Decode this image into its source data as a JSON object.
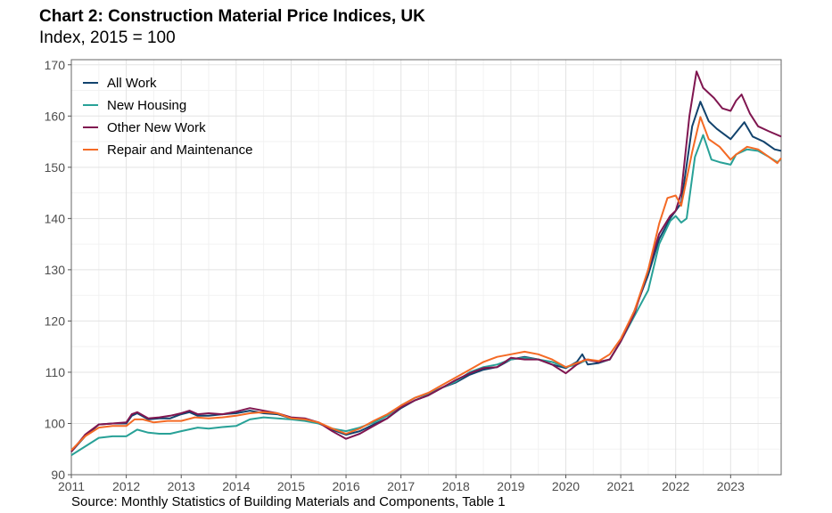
{
  "title": "Chart 2: Construction Material Price Indices, UK",
  "subtitle": "Index, 2015 = 100",
  "source": "Source: Monthly Statistics of Building Materials and Components, Table 1",
  "chart_data": {
    "type": "line",
    "xlabel": "",
    "ylabel": "",
    "xlim": [
      2011,
      2023.92
    ],
    "ylim": [
      90,
      171
    ],
    "x_ticks": [
      "2011",
      "2012",
      "2013",
      "2014",
      "2015",
      "2016",
      "2017",
      "2018",
      "2019",
      "2020",
      "2021",
      "2022",
      "2023"
    ],
    "y_ticks": [
      "90",
      "100",
      "110",
      "120",
      "130",
      "140",
      "150",
      "160",
      "170"
    ],
    "grid": true,
    "legend_position": "top-left",
    "series": [
      {
        "name": "All Work",
        "color": "#12436d",
        "points": [
          [
            2011.0,
            94.5
          ],
          [
            2011.25,
            97.5
          ],
          [
            2011.5,
            99.8
          ],
          [
            2011.75,
            100.0
          ],
          [
            2012.0,
            100.0
          ],
          [
            2012.1,
            101.5
          ],
          [
            2012.2,
            102.0
          ],
          [
            2012.4,
            100.8
          ],
          [
            2012.6,
            101.0
          ],
          [
            2012.8,
            101.0
          ],
          [
            2013.0,
            101.8
          ],
          [
            2013.15,
            102.2
          ],
          [
            2013.3,
            101.5
          ],
          [
            2013.5,
            101.5
          ],
          [
            2013.75,
            101.8
          ],
          [
            2014.0,
            102.0
          ],
          [
            2014.25,
            102.5
          ],
          [
            2014.5,
            102.0
          ],
          [
            2014.75,
            101.8
          ],
          [
            2015.0,
            101.0
          ],
          [
            2015.25,
            100.8
          ],
          [
            2015.5,
            100.2
          ],
          [
            2015.75,
            98.8
          ],
          [
            2016.0,
            97.8
          ],
          [
            2016.25,
            98.5
          ],
          [
            2016.5,
            99.8
          ],
          [
            2016.75,
            101.0
          ],
          [
            2017.0,
            103.0
          ],
          [
            2017.25,
            104.5
          ],
          [
            2017.5,
            105.5
          ],
          [
            2017.75,
            107.0
          ],
          [
            2018.0,
            108.0
          ],
          [
            2018.25,
            109.5
          ],
          [
            2018.5,
            110.5
          ],
          [
            2018.75,
            111.0
          ],
          [
            2019.0,
            112.5
          ],
          [
            2019.25,
            113.0
          ],
          [
            2019.5,
            112.5
          ],
          [
            2019.75,
            111.5
          ],
          [
            2020.0,
            110.8
          ],
          [
            2020.2,
            112.0
          ],
          [
            2020.3,
            113.5
          ],
          [
            2020.4,
            111.5
          ],
          [
            2020.6,
            111.8
          ],
          [
            2020.8,
            112.5
          ],
          [
            2021.0,
            116.0
          ],
          [
            2021.25,
            122.0
          ],
          [
            2021.5,
            129.0
          ],
          [
            2021.7,
            136.0
          ],
          [
            2021.9,
            140.0
          ],
          [
            2022.0,
            141.5
          ],
          [
            2022.1,
            143.0
          ],
          [
            2022.3,
            158.0
          ],
          [
            2022.45,
            162.8
          ],
          [
            2022.6,
            159.0
          ],
          [
            2022.75,
            157.5
          ],
          [
            2023.0,
            155.5
          ],
          [
            2023.25,
            158.8
          ],
          [
            2023.4,
            156.0
          ],
          [
            2023.6,
            155.0
          ],
          [
            2023.8,
            153.5
          ],
          [
            2023.92,
            153.2
          ]
        ]
      },
      {
        "name": "New Housing",
        "color": "#28a197",
        "points": [
          [
            2011.0,
            93.8
          ],
          [
            2011.25,
            95.5
          ],
          [
            2011.5,
            97.2
          ],
          [
            2011.75,
            97.5
          ],
          [
            2012.0,
            97.5
          ],
          [
            2012.2,
            98.8
          ],
          [
            2012.4,
            98.2
          ],
          [
            2012.6,
            98.0
          ],
          [
            2012.8,
            98.0
          ],
          [
            2013.0,
            98.5
          ],
          [
            2013.3,
            99.2
          ],
          [
            2013.5,
            99.0
          ],
          [
            2013.75,
            99.3
          ],
          [
            2014.0,
            99.5
          ],
          [
            2014.25,
            100.8
          ],
          [
            2014.5,
            101.2
          ],
          [
            2014.75,
            101.0
          ],
          [
            2015.0,
            100.8
          ],
          [
            2015.25,
            100.5
          ],
          [
            2015.5,
            100.0
          ],
          [
            2015.75,
            99.0
          ],
          [
            2016.0,
            98.5
          ],
          [
            2016.25,
            99.2
          ],
          [
            2016.5,
            100.2
          ],
          [
            2016.75,
            101.5
          ],
          [
            2017.0,
            103.5
          ],
          [
            2017.25,
            105.0
          ],
          [
            2017.5,
            105.8
          ],
          [
            2017.75,
            107.0
          ],
          [
            2018.0,
            108.2
          ],
          [
            2018.25,
            110.0
          ],
          [
            2018.5,
            111.0
          ],
          [
            2018.75,
            111.5
          ],
          [
            2019.0,
            112.5
          ],
          [
            2019.25,
            112.8
          ],
          [
            2019.5,
            112.5
          ],
          [
            2019.75,
            112.0
          ],
          [
            2020.0,
            111.0
          ],
          [
            2020.2,
            111.5
          ],
          [
            2020.4,
            112.5
          ],
          [
            2020.6,
            112.0
          ],
          [
            2020.8,
            112.5
          ],
          [
            2021.0,
            116.0
          ],
          [
            2021.25,
            121.0
          ],
          [
            2021.5,
            126.0
          ],
          [
            2021.7,
            135.0
          ],
          [
            2021.9,
            139.5
          ],
          [
            2022.0,
            140.5
          ],
          [
            2022.1,
            139.2
          ],
          [
            2022.2,
            140.0
          ],
          [
            2022.35,
            152.0
          ],
          [
            2022.5,
            156.3
          ],
          [
            2022.65,
            151.5
          ],
          [
            2022.8,
            151.0
          ],
          [
            2023.0,
            150.5
          ],
          [
            2023.1,
            152.5
          ],
          [
            2023.3,
            153.5
          ],
          [
            2023.5,
            153.2
          ],
          [
            2023.7,
            152.0
          ],
          [
            2023.85,
            151.0
          ],
          [
            2023.92,
            151.6
          ]
        ]
      },
      {
        "name": "Other New Work",
        "color": "#801650",
        "points": [
          [
            2011.0,
            94.5
          ],
          [
            2011.25,
            97.8
          ],
          [
            2011.5,
            99.8
          ],
          [
            2011.75,
            100.0
          ],
          [
            2012.0,
            100.2
          ],
          [
            2012.1,
            101.8
          ],
          [
            2012.2,
            102.2
          ],
          [
            2012.4,
            101.0
          ],
          [
            2012.6,
            101.2
          ],
          [
            2012.8,
            101.5
          ],
          [
            2013.0,
            102.0
          ],
          [
            2013.15,
            102.5
          ],
          [
            2013.3,
            101.8
          ],
          [
            2013.5,
            102.0
          ],
          [
            2013.75,
            101.8
          ],
          [
            2014.0,
            102.3
          ],
          [
            2014.25,
            103.0
          ],
          [
            2014.5,
            102.5
          ],
          [
            2014.75,
            102.0
          ],
          [
            2015.0,
            101.2
          ],
          [
            2015.25,
            101.0
          ],
          [
            2015.5,
            100.2
          ],
          [
            2015.75,
            98.5
          ],
          [
            2016.0,
            97.0
          ],
          [
            2016.25,
            98.0
          ],
          [
            2016.5,
            99.5
          ],
          [
            2016.75,
            101.0
          ],
          [
            2017.0,
            103.2
          ],
          [
            2017.25,
            104.5
          ],
          [
            2017.5,
            105.5
          ],
          [
            2017.75,
            107.0
          ],
          [
            2018.0,
            108.5
          ],
          [
            2018.25,
            109.8
          ],
          [
            2018.5,
            110.8
          ],
          [
            2018.75,
            111.0
          ],
          [
            2019.0,
            112.8
          ],
          [
            2019.25,
            112.5
          ],
          [
            2019.5,
            112.5
          ],
          [
            2019.75,
            111.5
          ],
          [
            2020.0,
            109.8
          ],
          [
            2020.2,
            111.5
          ],
          [
            2020.35,
            112.5
          ],
          [
            2020.6,
            112.0
          ],
          [
            2020.8,
            112.5
          ],
          [
            2021.0,
            116.0
          ],
          [
            2021.25,
            121.5
          ],
          [
            2021.5,
            130.0
          ],
          [
            2021.7,
            137.0
          ],
          [
            2021.9,
            140.5
          ],
          [
            2022.0,
            141.5
          ],
          [
            2022.1,
            145.0
          ],
          [
            2022.25,
            160.0
          ],
          [
            2022.38,
            168.7
          ],
          [
            2022.5,
            165.5
          ],
          [
            2022.7,
            163.5
          ],
          [
            2022.85,
            161.5
          ],
          [
            2023.0,
            161.0
          ],
          [
            2023.1,
            163.0
          ],
          [
            2023.2,
            164.2
          ],
          [
            2023.35,
            160.5
          ],
          [
            2023.5,
            158.0
          ],
          [
            2023.7,
            157.0
          ],
          [
            2023.92,
            156.0
          ]
        ]
      },
      {
        "name": "Repair and Maintenance",
        "color": "#f46a25",
        "points": [
          [
            2011.0,
            94.8
          ],
          [
            2011.25,
            97.5
          ],
          [
            2011.5,
            99.2
          ],
          [
            2011.75,
            99.5
          ],
          [
            2012.0,
            99.5
          ],
          [
            2012.15,
            100.8
          ],
          [
            2012.3,
            100.8
          ],
          [
            2012.5,
            100.2
          ],
          [
            2012.75,
            100.5
          ],
          [
            2013.0,
            100.5
          ],
          [
            2013.25,
            101.2
          ],
          [
            2013.5,
            101.0
          ],
          [
            2013.75,
            101.2
          ],
          [
            2014.0,
            101.5
          ],
          [
            2014.25,
            102.0
          ],
          [
            2014.5,
            102.2
          ],
          [
            2014.75,
            102.0
          ],
          [
            2015.0,
            101.0
          ],
          [
            2015.25,
            100.8
          ],
          [
            2015.5,
            100.2
          ],
          [
            2015.75,
            99.0
          ],
          [
            2016.0,
            98.0
          ],
          [
            2016.25,
            99.0
          ],
          [
            2016.5,
            100.5
          ],
          [
            2016.75,
            101.8
          ],
          [
            2017.0,
            103.5
          ],
          [
            2017.25,
            105.0
          ],
          [
            2017.5,
            106.0
          ],
          [
            2017.75,
            107.5
          ],
          [
            2018.0,
            109.0
          ],
          [
            2018.25,
            110.5
          ],
          [
            2018.5,
            112.0
          ],
          [
            2018.75,
            113.0
          ],
          [
            2019.0,
            113.5
          ],
          [
            2019.25,
            114.0
          ],
          [
            2019.5,
            113.5
          ],
          [
            2019.75,
            112.5
          ],
          [
            2020.0,
            111.0
          ],
          [
            2020.2,
            111.8
          ],
          [
            2020.4,
            112.5
          ],
          [
            2020.6,
            112.2
          ],
          [
            2020.8,
            113.5
          ],
          [
            2021.0,
            116.5
          ],
          [
            2021.25,
            122.0
          ],
          [
            2021.5,
            130.0
          ],
          [
            2021.7,
            139.0
          ],
          [
            2021.85,
            144.0
          ],
          [
            2022.0,
            144.5
          ],
          [
            2022.1,
            142.5
          ],
          [
            2022.3,
            153.0
          ],
          [
            2022.45,
            159.8
          ],
          [
            2022.6,
            155.5
          ],
          [
            2022.8,
            154.0
          ],
          [
            2023.0,
            151.5
          ],
          [
            2023.1,
            152.5
          ],
          [
            2023.3,
            154.0
          ],
          [
            2023.5,
            153.5
          ],
          [
            2023.7,
            152.0
          ],
          [
            2023.85,
            150.8
          ],
          [
            2023.92,
            151.8
          ]
        ]
      }
    ]
  }
}
